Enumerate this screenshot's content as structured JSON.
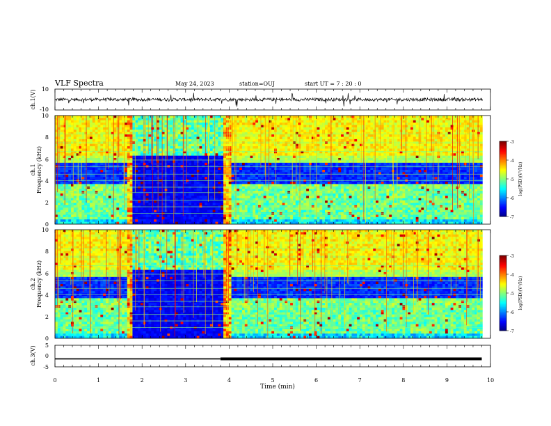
{
  "header": {
    "title": "VLF Spectra",
    "date": "May 24, 2023",
    "station": "station=OUJ",
    "start": "start  UT =   7 : 20 : 0"
  },
  "chart_data": [
    {
      "type": "line",
      "id": "ch1",
      "ylabel": "ch.1(V)",
      "yticks": [
        "10",
        "-10"
      ],
      "ylim": [
        -10,
        10
      ],
      "x": "time (min)",
      "baseline_v": 0,
      "description_values": {
        "typical_amplitude_v": 1.5,
        "max_spike_v": 7
      }
    },
    {
      "type": "heatmap",
      "id": "ch1-spectrogram",
      "ylabel": "ch.1",
      "ylabel2": "Frequency (kHz)",
      "ylim": [
        0,
        10
      ],
      "yticks": [
        "0",
        "2",
        "4",
        "6",
        "8",
        "10"
      ],
      "quiet_intervals_min": [
        [
          1.7,
          3.95
        ]
      ],
      "colorbar": {
        "label": "log(PSD)(V²/Hz)",
        "ticks": [
          "-3",
          "-4",
          "-5",
          "-6",
          "-7"
        ],
        "range": [
          -7,
          -3
        ]
      }
    },
    {
      "type": "heatmap",
      "id": "ch2-spectrogram",
      "ylabel": "ch.2",
      "ylabel2": "Frequency (kHz)",
      "ylim": [
        0,
        10
      ],
      "yticks": [
        "0",
        "2",
        "4",
        "6",
        "8",
        "10"
      ],
      "quiet_intervals_min": [
        [
          1.7,
          3.95
        ]
      ],
      "colorbar": {
        "label": "log(PSD)(V²/Hz)",
        "ticks": [
          "-3",
          "-4",
          "-5",
          "-6",
          "-7"
        ],
        "range": [
          -7,
          -3
        ]
      }
    },
    {
      "type": "line",
      "id": "ch3",
      "ylabel": "ch.3(V)",
      "yticks": [
        "5",
        "0",
        "-5"
      ],
      "ylim": [
        -5,
        5
      ],
      "x": [
        0,
        3.8,
        3.8,
        9.8
      ],
      "y": [
        -1.3,
        -1.3,
        -1.3,
        -1.3
      ],
      "line_weights": [
        "thin",
        "thick"
      ]
    }
  ],
  "xaxis": {
    "label": "Time  (min)",
    "ticks": [
      "0",
      "1",
      "2",
      "3",
      "4",
      "5",
      "6",
      "7",
      "8",
      "9",
      "10"
    ],
    "xlim": [
      0,
      10
    ]
  }
}
